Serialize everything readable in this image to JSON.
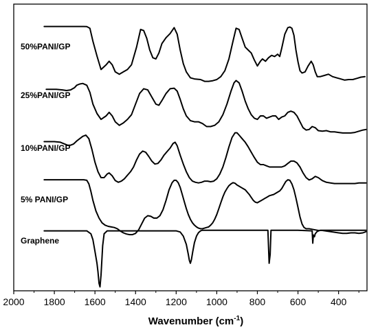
{
  "chart_data": {
    "type": "line",
    "title": "",
    "xlabel": "Wavenumber (cm",
    "xlabel_superscript": "-1",
    "xlabel_suffix": ")",
    "ylabel": "",
    "x_reversed": true,
    "xlim": [
      2000,
      260
    ],
    "x_ticks": [
      2000,
      1800,
      1600,
      1400,
      1200,
      1000,
      800,
      600,
      400
    ],
    "grid": false,
    "series": [
      {
        "name": "50%PANI/GP",
        "offset": 4,
        "x": [
          1850,
          1700,
          1655,
          1640,
          1625,
          1610,
          1590,
          1570,
          1545,
          1530,
          1515,
          1500,
          1480,
          1460,
          1440,
          1420,
          1395,
          1375,
          1360,
          1345,
          1330,
          1315,
          1300,
          1285,
          1270,
          1250,
          1230,
          1210,
          1195,
          1180,
          1165,
          1150,
          1130,
          1110,
          1080,
          1060,
          1040,
          1020,
          1000,
          980,
          960,
          940,
          920,
          905,
          890,
          875,
          860,
          845,
          830,
          815,
          800,
          785,
          775,
          760,
          745,
          730,
          715,
          700,
          690,
          680,
          665,
          650,
          640,
          630,
          620,
          610,
          600,
          590,
          580,
          565,
          550,
          535,
          525,
          515,
          505,
          490,
          470,
          450,
          430,
          410,
          390,
          370,
          350,
          330,
          310,
          290,
          270
        ],
        "y": [
          0.95,
          0.95,
          0.95,
          0.948,
          0.92,
          0.7,
          0.45,
          0.22,
          0.3,
          0.36,
          0.3,
          0.18,
          0.14,
          0.18,
          0.22,
          0.3,
          0.6,
          0.9,
          0.88,
          0.75,
          0.55,
          0.42,
          0.4,
          0.5,
          0.66,
          0.76,
          0.83,
          0.93,
          0.82,
          0.55,
          0.32,
          0.18,
          0.08,
          0.06,
          0.05,
          0.02,
          0.02,
          0.03,
          0.05,
          0.1,
          0.2,
          0.4,
          0.7,
          0.92,
          0.9,
          0.75,
          0.6,
          0.55,
          0.5,
          0.38,
          0.28,
          0.36,
          0.4,
          0.36,
          0.42,
          0.46,
          0.44,
          0.48,
          0.44,
          0.58,
          0.82,
          0.93,
          0.94,
          0.92,
          0.8,
          0.55,
          0.35,
          0.2,
          0.16,
          0.18,
          0.28,
          0.36,
          0.3,
          0.18,
          0.1,
          0.1,
          0.12,
          0.14,
          0.1,
          0.08,
          0.06,
          0.04,
          0.05,
          0.05,
          0.07,
          0.09,
          0.1
        ]
      },
      {
        "name": "25%PANI/GP",
        "offset": 3,
        "x": [
          1840,
          1820,
          1790,
          1760,
          1740,
          1720,
          1700,
          1690,
          1675,
          1660,
          1640,
          1625,
          1610,
          1590,
          1570,
          1545,
          1530,
          1515,
          1500,
          1480,
          1460,
          1440,
          1420,
          1400,
          1380,
          1360,
          1340,
          1320,
          1300,
          1285,
          1270,
          1250,
          1230,
          1210,
          1195,
          1180,
          1165,
          1150,
          1130,
          1110,
          1090,
          1070,
          1050,
          1030,
          1010,
          990,
          970,
          950,
          930,
          915,
          905,
          890,
          875,
          860,
          845,
          830,
          815,
          800,
          785,
          770,
          755,
          740,
          725,
          710,
          695,
          680,
          665,
          650,
          635,
          620,
          605,
          590,
          575,
          560,
          545,
          530,
          515,
          500,
          480,
          460,
          440,
          420,
          400,
          380,
          360,
          340,
          320,
          300,
          280,
          265
        ],
        "y": [
          0.75,
          0.75,
          0.75,
          0.74,
          0.73,
          0.74,
          0.78,
          0.82,
          0.84,
          0.85,
          0.82,
          0.7,
          0.5,
          0.34,
          0.24,
          0.3,
          0.36,
          0.3,
          0.2,
          0.14,
          0.18,
          0.24,
          0.32,
          0.5,
          0.68,
          0.76,
          0.74,
          0.62,
          0.5,
          0.48,
          0.56,
          0.68,
          0.76,
          0.77,
          0.72,
          0.58,
          0.42,
          0.3,
          0.22,
          0.2,
          0.2,
          0.17,
          0.12,
          0.12,
          0.14,
          0.2,
          0.32,
          0.5,
          0.72,
          0.86,
          0.9,
          0.86,
          0.72,
          0.55,
          0.42,
          0.32,
          0.26,
          0.24,
          0.3,
          0.3,
          0.26,
          0.28,
          0.3,
          0.3,
          0.24,
          0.28,
          0.3,
          0.36,
          0.38,
          0.36,
          0.3,
          0.2,
          0.1,
          0.06,
          0.07,
          0.12,
          0.1,
          0.05,
          0.04,
          0.05,
          0.03,
          0.03,
          0.02,
          0.01,
          0.01,
          0.01,
          0.02,
          0.04,
          0.06,
          0.07
        ]
      },
      {
        "name": "10%PANI/GP",
        "offset": 2,
        "x": [
          1850,
          1800,
          1770,
          1750,
          1735,
          1720,
          1705,
          1690,
          1675,
          1660,
          1645,
          1630,
          1615,
          1600,
          1585,
          1570,
          1555,
          1540,
          1530,
          1515,
          1500,
          1485,
          1470,
          1455,
          1440,
          1425,
          1410,
          1395,
          1380,
          1365,
          1350,
          1335,
          1320,
          1305,
          1290,
          1275,
          1260,
          1245,
          1230,
          1215,
          1205,
          1195,
          1180,
          1165,
          1150,
          1135,
          1120,
          1105,
          1090,
          1075,
          1060,
          1045,
          1030,
          1015,
          1000,
          985,
          970,
          955,
          940,
          925,
          910,
          900,
          890,
          875,
          860,
          845,
          830,
          815,
          800,
          785,
          770,
          755,
          740,
          725,
          710,
          695,
          680,
          665,
          650,
          635,
          620,
          605,
          590,
          575,
          560,
          545,
          530,
          515,
          500,
          480,
          460,
          440,
          420,
          400,
          380,
          360,
          340,
          320,
          300,
          280,
          265
        ],
        "y": [
          0.73,
          0.73,
          0.72,
          0.69,
          0.67,
          0.67,
          0.69,
          0.74,
          0.78,
          0.82,
          0.84,
          0.78,
          0.6,
          0.38,
          0.22,
          0.12,
          0.12,
          0.18,
          0.2,
          0.15,
          0.07,
          0.04,
          0.06,
          0.1,
          0.16,
          0.22,
          0.3,
          0.42,
          0.52,
          0.57,
          0.55,
          0.48,
          0.4,
          0.35,
          0.36,
          0.42,
          0.5,
          0.56,
          0.62,
          0.7,
          0.72,
          0.66,
          0.5,
          0.35,
          0.22,
          0.12,
          0.06,
          0.04,
          0.03,
          0.04,
          0.06,
          0.06,
          0.05,
          0.06,
          0.1,
          0.18,
          0.3,
          0.46,
          0.64,
          0.8,
          0.88,
          0.88,
          0.84,
          0.78,
          0.72,
          0.64,
          0.55,
          0.46,
          0.38,
          0.34,
          0.34,
          0.32,
          0.3,
          0.3,
          0.3,
          0.3,
          0.3,
          0.32,
          0.36,
          0.4,
          0.4,
          0.37,
          0.3,
          0.2,
          0.12,
          0.08,
          0.1,
          0.14,
          0.12,
          0.07,
          0.04,
          0.03,
          0.02,
          0.02,
          0.02,
          0.02,
          0.02,
          0.02,
          0.03,
          0.03,
          0.03
        ]
      },
      {
        "name": "5% PANI/GP",
        "offset": 1,
        "x": [
          1850,
          1700,
          1655,
          1640,
          1630,
          1620,
          1610,
          1595,
          1580,
          1565,
          1550,
          1535,
          1520,
          1505,
          1490,
          1475,
          1460,
          1445,
          1430,
          1415,
          1400,
          1385,
          1370,
          1355,
          1340,
          1325,
          1310,
          1295,
          1280,
          1265,
          1250,
          1235,
          1220,
          1210,
          1200,
          1190,
          1180,
          1170,
          1160,
          1150,
          1140,
          1130,
          1120,
          1110,
          1100,
          1090,
          1080,
          1070,
          1060,
          1050,
          1040,
          1030,
          1020,
          1010,
          1000,
          990,
          980,
          970,
          960,
          950,
          940,
          930,
          920,
          910,
          900,
          890,
          880,
          870,
          860,
          850,
          840,
          830,
          820,
          810,
          800,
          790,
          780,
          770,
          760,
          750,
          740,
          730,
          720,
          710,
          700,
          690,
          680,
          670,
          660,
          650,
          640,
          630,
          620,
          610,
          600,
          590,
          580,
          570,
          560,
          545,
          530,
          515,
          500,
          480,
          460,
          440,
          420,
          400,
          380,
          360,
          340,
          320,
          300,
          280,
          265
        ],
        "y": [
          0.95,
          0.95,
          0.95,
          0.94,
          0.88,
          0.75,
          0.6,
          0.42,
          0.3,
          0.22,
          0.18,
          0.16,
          0.15,
          0.14,
          0.12,
          0.08,
          0.05,
          0.03,
          0.02,
          0.02,
          0.04,
          0.1,
          0.2,
          0.3,
          0.34,
          0.33,
          0.3,
          0.3,
          0.34,
          0.44,
          0.6,
          0.78,
          0.9,
          0.94,
          0.94,
          0.9,
          0.82,
          0.7,
          0.58,
          0.46,
          0.36,
          0.28,
          0.22,
          0.18,
          0.15,
          0.13,
          0.12,
          0.12,
          0.13,
          0.14,
          0.15,
          0.18,
          0.22,
          0.28,
          0.36,
          0.46,
          0.56,
          0.66,
          0.74,
          0.8,
          0.85,
          0.88,
          0.9,
          0.89,
          0.86,
          0.84,
          0.82,
          0.8,
          0.78,
          0.74,
          0.7,
          0.65,
          0.6,
          0.57,
          0.56,
          0.58,
          0.6,
          0.62,
          0.64,
          0.66,
          0.68,
          0.69,
          0.7,
          0.72,
          0.74,
          0.76,
          0.8,
          0.86,
          0.92,
          0.95,
          0.94,
          0.88,
          0.78,
          0.64,
          0.48,
          0.32,
          0.2,
          0.14,
          0.12,
          0.12,
          0.11,
          0.1,
          0.09,
          0.09,
          0.08,
          0.07,
          0.06,
          0.05,
          0.04,
          0.04,
          0.05,
          0.05,
          0.04,
          0.05,
          0.07
        ]
      },
      {
        "name": "Graphene",
        "offset": 0,
        "x": [
          1850,
          1700,
          1640,
          1620,
          1610,
          1600,
          1590,
          1585,
          1580,
          1575,
          1570,
          1562,
          1555,
          1540,
          1500,
          1400,
          1300,
          1200,
          1180,
          1165,
          1150,
          1140,
          1135,
          1130,
          1125,
          1118,
          1110,
          1100,
          1090,
          1080,
          1070,
          1000,
          900,
          800,
          760,
          748,
          742,
          737,
          733,
          725,
          700,
          600,
          530,
          527,
          524,
          519,
          515,
          505,
          490,
          400,
          300,
          265
        ],
        "y": [
          0.95,
          0.95,
          0.95,
          0.9,
          0.8,
          0.6,
          0.4,
          0.25,
          0.06,
          0.0,
          0.2,
          0.7,
          0.9,
          0.95,
          0.95,
          0.95,
          0.95,
          0.95,
          0.93,
          0.86,
          0.72,
          0.55,
          0.45,
          0.4,
          0.46,
          0.6,
          0.75,
          0.86,
          0.92,
          0.95,
          0.96,
          0.96,
          0.96,
          0.96,
          0.96,
          0.96,
          0.4,
          0.55,
          0.96,
          0.96,
          0.96,
          0.96,
          0.95,
          0.74,
          0.88,
          0.85,
          0.9,
          0.94,
          0.96,
          0.96,
          0.96,
          0.96
        ]
      }
    ]
  }
}
